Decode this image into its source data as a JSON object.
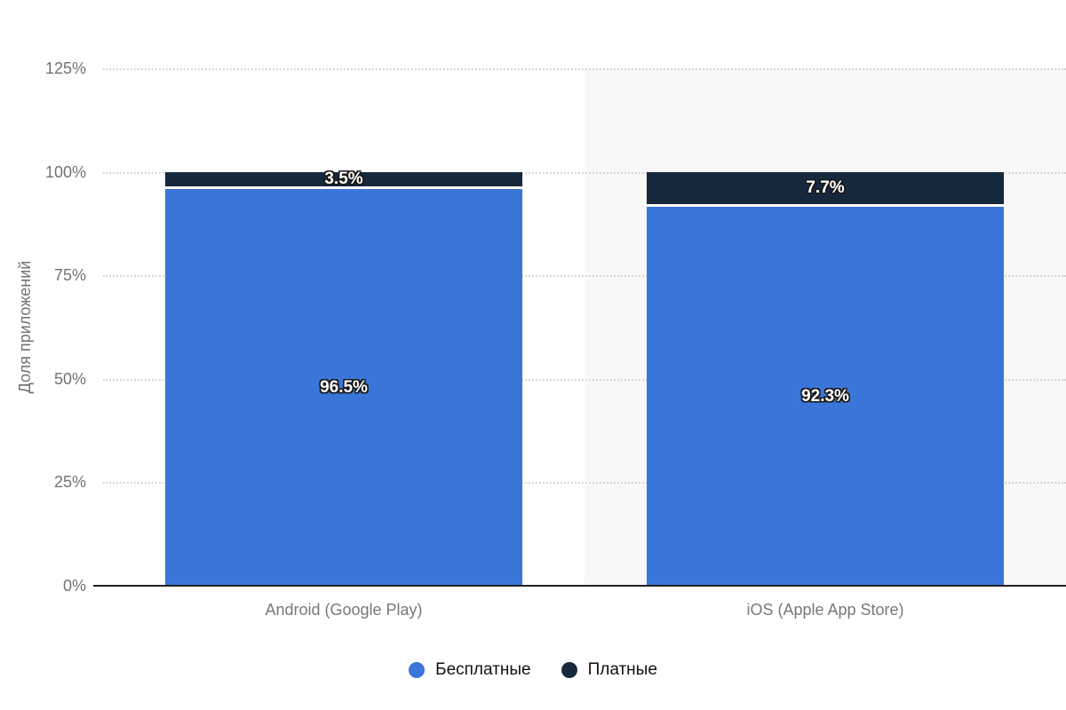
{
  "chart_data": {
    "type": "bar",
    "variant": "stacked-column-percent",
    "title": "",
    "categories": [
      "Android (Google Play)",
      "iOS (Apple App Store)"
    ],
    "series": [
      {
        "name": "Бесплатные",
        "color": "#3a76d8",
        "values": [
          96.5,
          92.3
        ],
        "labels": [
          "96.5%",
          "92.3%"
        ]
      },
      {
        "name": "Платные",
        "color": "#16283c",
        "values": [
          3.5,
          7.7
        ],
        "labels": [
          "3.5%",
          "7.7%"
        ]
      }
    ],
    "ylabel": "Доля приложений",
    "xlabel": "",
    "ylim": [
      0,
      125
    ],
    "ytick_step": 25,
    "yticks": [
      "0%",
      "25%",
      "50%",
      "75%",
      "100%",
      "125%"
    ],
    "grid": "horizontal-dotted",
    "legend_position": "bottom",
    "plot_band": {
      "category_index": 1,
      "color": "#f8f8f9"
    }
  },
  "style_colors": {
    "background": "#ffffff",
    "grid_line": "#d6d6d6",
    "axis_line": "#222222",
    "tick_text": "#6f7276",
    "category_text": "#76797d",
    "ylabel_text": "#6f7276",
    "data_label_text": "#ffffff",
    "data_label_outline": "#1a1a1a",
    "legend_text": "#111111"
  }
}
